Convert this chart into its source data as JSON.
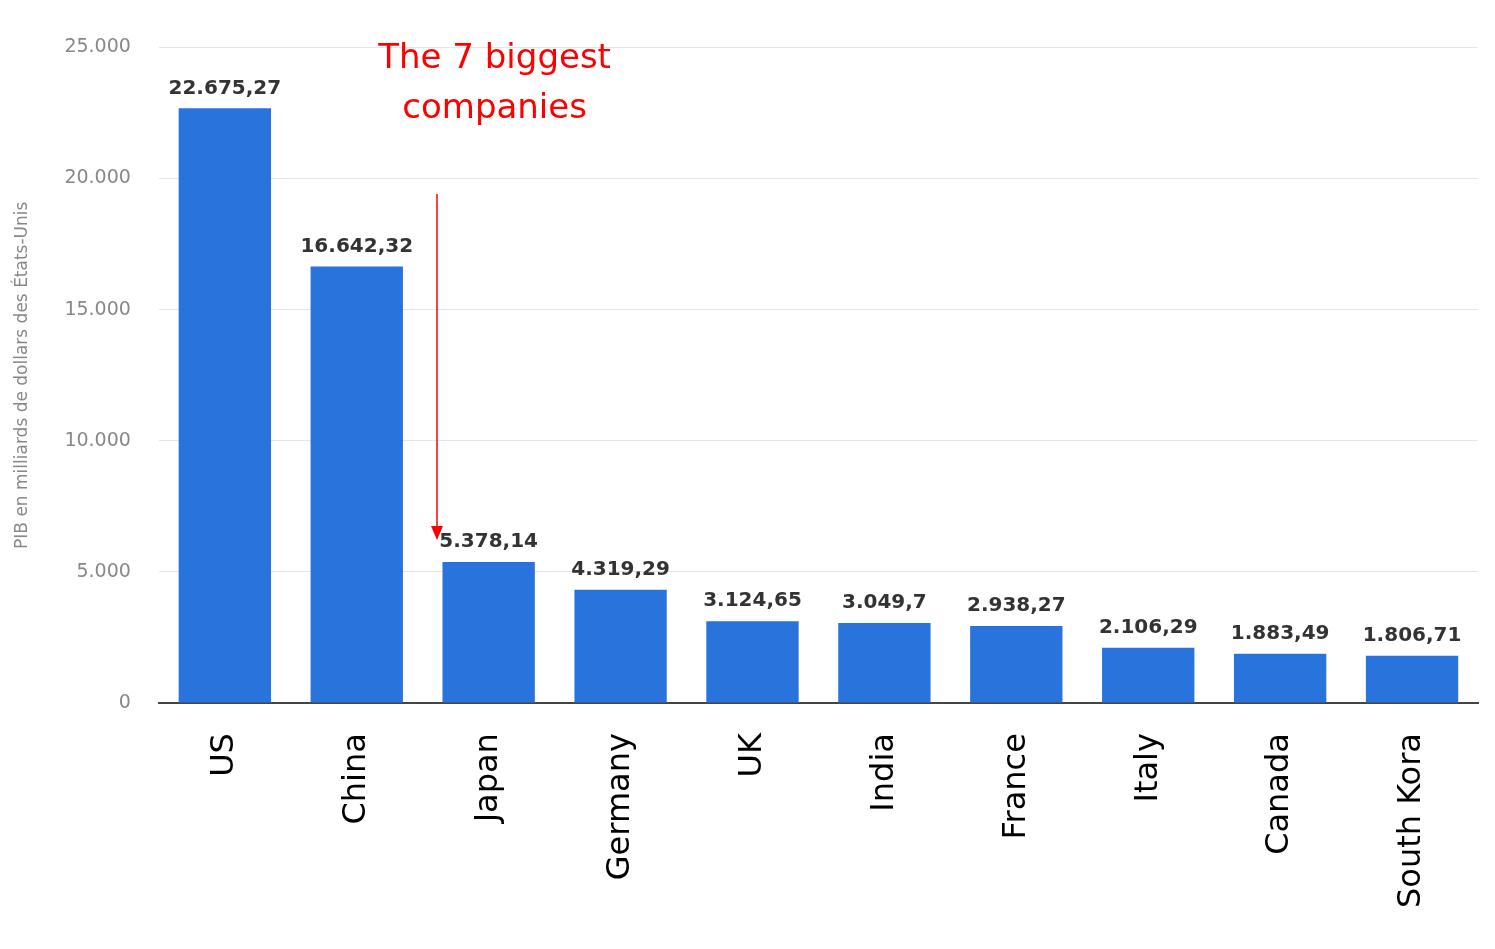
{
  "chart_data": {
    "type": "bar",
    "ylabel": "PIB en milliards de dollars des États-Unis",
    "categories": [
      "US",
      "China",
      "Japan",
      "Germany",
      "UK",
      "India",
      "France",
      "Italy",
      "Canada",
      "South Kora"
    ],
    "values": [
      22675.27,
      16642.32,
      5378.14,
      4319.29,
      3124.65,
      3049.7,
      2938.27,
      2106.29,
      1883.49,
      1806.71
    ],
    "value_labels": [
      "22.675,27",
      "16.642,32",
      "5.378,14",
      "4.319,29",
      "3.124,65",
      "3.049,7",
      "2.938,27",
      "2.106,29",
      "1.883,49",
      "1.806,71"
    ],
    "color": "#2873dc",
    "ylim": [
      0,
      25000
    ],
    "yticks": [
      0,
      {
        "value": 5000,
        "label": "5.000"
      },
      {
        "value": 10000,
        "label": "10.000"
      },
      {
        "value": 15000,
        "label": "15.000"
      },
      {
        "value": 20000,
        "label": "20.000"
      },
      {
        "value": 25000,
        "label": "25.000"
      }
    ],
    "grid": "y",
    "legend": false,
    "annotations": [
      "The 7 biggest companies"
    ]
  }
}
